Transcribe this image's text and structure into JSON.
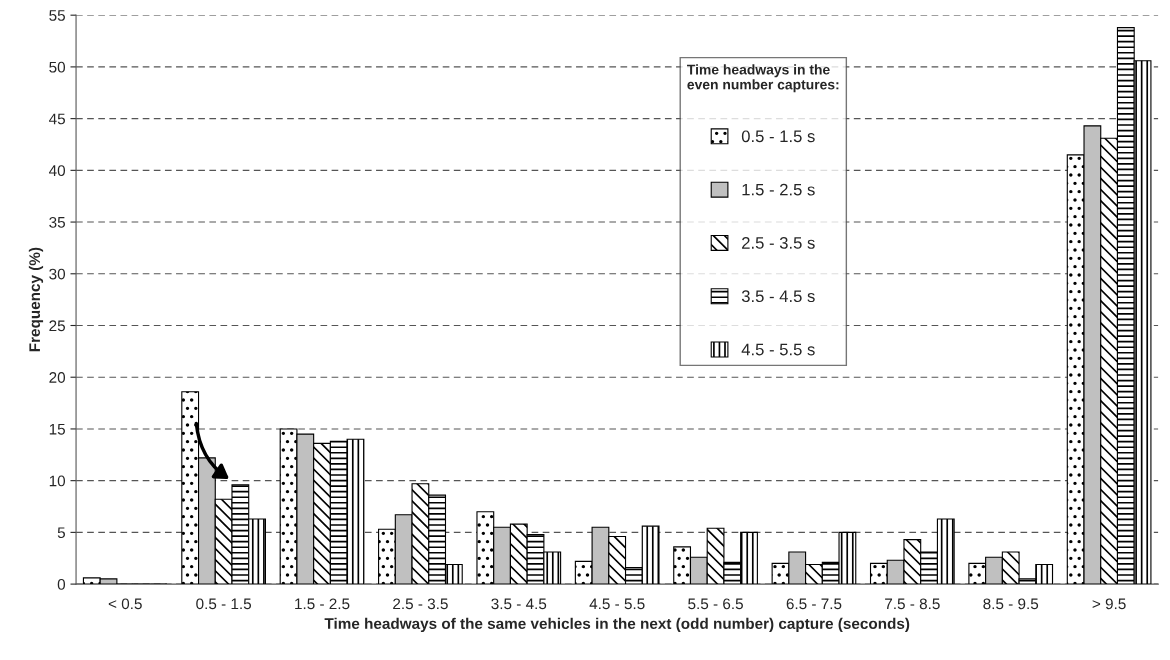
{
  "chart_data": {
    "type": "bar",
    "xlabel": "Time headways of the same vehicles in the next (odd number) capture (seconds)",
    "ylabel": "Frequency (%)",
    "legend_title": "Time headways in the\neven number captures:",
    "categories": [
      "< 0.5",
      "0.5 - 1.5",
      "1.5 - 2.5",
      "2.5 - 3.5",
      "3.5 - 4.5",
      "4.5 - 5.5",
      "5.5 - 6.5",
      "6.5 - 7.5",
      "7.5 - 8.5",
      "8.5 - 9.5",
      "> 9.5"
    ],
    "series": [
      {
        "name": "0.5 - 1.5 s",
        "color": "#000000",
        "values": [
          0.6,
          18.6,
          15.0,
          5.3,
          7.0,
          2.2,
          3.6,
          2.0,
          2.0,
          2.0,
          41.5
        ]
      },
      {
        "name": "1.5 - 2.5 s",
        "color": "#c0c0c0",
        "values": [
          0.5,
          12.2,
          14.5,
          6.7,
          5.5,
          5.5,
          2.6,
          3.1,
          2.3,
          2.6,
          44.3
        ]
      },
      {
        "name": "2.5 - 3.5 s",
        "color": "#000000",
        "values": [
          0,
          8.2,
          13.6,
          9.7,
          5.8,
          4.6,
          5.4,
          1.9,
          4.3,
          3.1,
          43.1
        ]
      },
      {
        "name": "3.5 - 4.5 s",
        "color": "#000000",
        "values": [
          0,
          9.6,
          13.8,
          8.6,
          4.8,
          1.6,
          2.1,
          2.1,
          3.1,
          0.5,
          53.8
        ]
      },
      {
        "name": "4.5 - 5.5 s",
        "color": "#000000",
        "values": [
          0,
          6.3,
          14.0,
          1.9,
          3.1,
          5.6,
          5.0,
          5.0,
          6.3,
          1.9,
          50.6
        ]
      }
    ],
    "ylim": [
      0,
      55
    ],
    "yticks": [
      0,
      5,
      10,
      15,
      20,
      25,
      30,
      35,
      40,
      45,
      50,
      55
    ],
    "grid": "y",
    "legend": "top right"
  }
}
